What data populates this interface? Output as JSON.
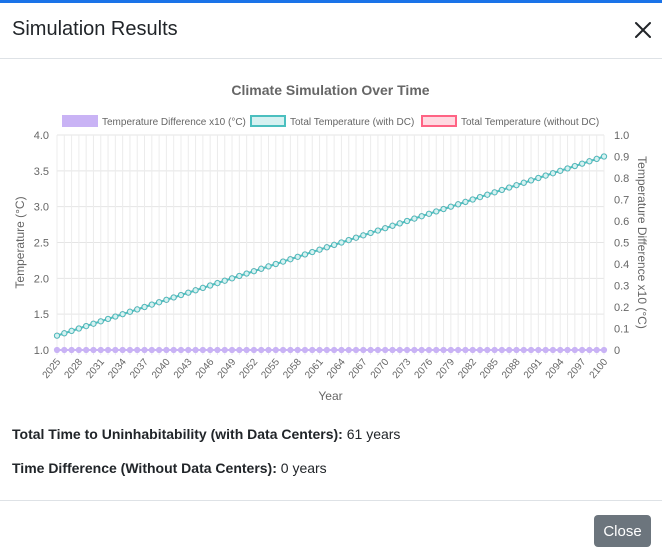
{
  "modal": {
    "title": "Simulation Results",
    "close_button_label": "Close"
  },
  "results": {
    "time_label": "Total Time to Uninhabitability (with Data Centers):",
    "time_value": "61 years",
    "diff_label": "Time Difference (Without Data Centers):",
    "diff_value": "0 years"
  },
  "chart_data": {
    "type": "line",
    "title": "Climate Simulation Over Time",
    "xlabel": "Year",
    "ylabel": "Temperature (°C)",
    "y2label": "Temperature Difference x10 (°C)",
    "ylim": [
      1.0,
      4.0
    ],
    "y2lim": [
      0,
      1.0
    ],
    "yticks": [
      "1.0",
      "1.5",
      "2.0",
      "2.5",
      "3.0",
      "3.5",
      "4.0"
    ],
    "y2ticks": [
      "0",
      "0.1",
      "0.2",
      "0.3",
      "0.4",
      "0.5",
      "0.6",
      "0.7",
      "0.8",
      "0.9",
      "1.0"
    ],
    "x_start": 2025,
    "x_end": 2100,
    "xtick_labels": [
      "2025",
      "2028",
      "2031",
      "2034",
      "2037",
      "2040",
      "2043",
      "2046",
      "2049",
      "2052",
      "2055",
      "2058",
      "2061",
      "2064",
      "2067",
      "2070",
      "2073",
      "2076",
      "2079",
      "2082",
      "2085",
      "2088",
      "2091",
      "2094",
      "2097",
      "2100"
    ],
    "legend_position": "top",
    "grid": true,
    "series": [
      {
        "name": "Temperature Difference x10 (°C)",
        "color": "#c9b3f5",
        "fill": "#c9b3f5",
        "axis": "right",
        "start": 0,
        "end": 0
      },
      {
        "name": "Total Temperature (with DC)",
        "color": "#4bbfbf",
        "fill": "#d6f1f1",
        "axis": "left",
        "start": 1.2,
        "end": 3.7
      },
      {
        "name": "Total Temperature (without DC)",
        "color": "#ff6384",
        "fill": "#ffd9e1",
        "axis": "left",
        "start": 1.2,
        "end": 3.7
      }
    ]
  }
}
